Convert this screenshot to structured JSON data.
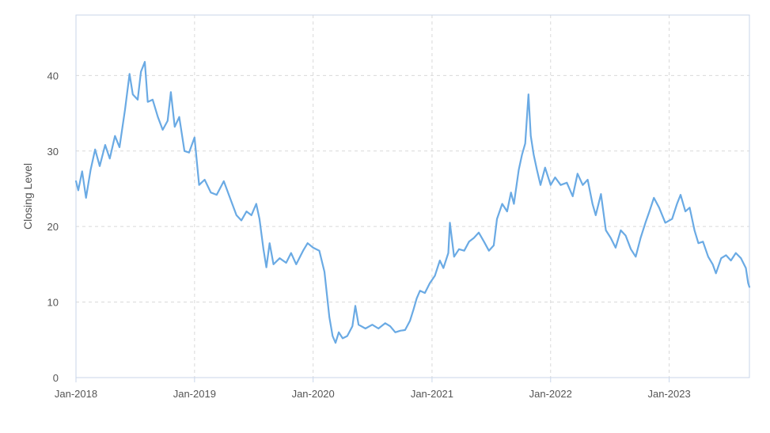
{
  "chart_data": {
    "type": "line",
    "title": "",
    "xlabel": "",
    "ylabel": "Closing Level",
    "ylim": [
      0,
      48
    ],
    "yticks": [
      0,
      10,
      20,
      30,
      40
    ],
    "xlim": [
      "2018-01-01",
      "2023-09-05"
    ],
    "xticks": [
      {
        "date": "2018-01-01",
        "label": "Jan-2018"
      },
      {
        "date": "2019-01-01",
        "label": "Jan-2019"
      },
      {
        "date": "2020-01-01",
        "label": "Jan-2020"
      },
      {
        "date": "2021-01-01",
        "label": "Jan-2021"
      },
      {
        "date": "2022-01-01",
        "label": "Jan-2022"
      },
      {
        "date": "2023-01-01",
        "label": "Jan-2023"
      }
    ],
    "grid": true,
    "legend": "none",
    "colors": {
      "line": "#6aaae4",
      "grid": "#d9d9d9",
      "frame": "#c9d6ea"
    },
    "series": [
      {
        "points": [
          [
            "2018-01-01",
            26.0
          ],
          [
            "2018-01-08",
            24.8
          ],
          [
            "2018-01-20",
            27.3
          ],
          [
            "2018-02-01",
            23.8
          ],
          [
            "2018-02-15",
            27.5
          ],
          [
            "2018-03-01",
            30.2
          ],
          [
            "2018-03-15",
            28.0
          ],
          [
            "2018-04-01",
            30.8
          ],
          [
            "2018-04-15",
            29.0
          ],
          [
            "2018-05-01",
            32.0
          ],
          [
            "2018-05-15",
            30.5
          ],
          [
            "2018-06-01",
            35.5
          ],
          [
            "2018-06-15",
            40.2
          ],
          [
            "2018-06-25",
            37.5
          ],
          [
            "2018-07-10",
            36.8
          ],
          [
            "2018-07-20",
            40.5
          ],
          [
            "2018-08-01",
            41.8
          ],
          [
            "2018-08-10",
            36.5
          ],
          [
            "2018-08-25",
            36.8
          ],
          [
            "2018-09-10",
            34.5
          ],
          [
            "2018-09-25",
            32.8
          ],
          [
            "2018-10-10",
            34.0
          ],
          [
            "2018-10-20",
            37.8
          ],
          [
            "2018-11-01",
            33.2
          ],
          [
            "2018-11-15",
            34.5
          ],
          [
            "2018-12-01",
            30.0
          ],
          [
            "2018-12-15",
            29.8
          ],
          [
            "2019-01-01",
            31.8
          ],
          [
            "2019-01-15",
            25.5
          ],
          [
            "2019-02-01",
            26.2
          ],
          [
            "2019-02-20",
            24.5
          ],
          [
            "2019-03-10",
            24.2
          ],
          [
            "2019-04-01",
            26.0
          ],
          [
            "2019-04-20",
            23.8
          ],
          [
            "2019-05-10",
            21.5
          ],
          [
            "2019-05-25",
            20.8
          ],
          [
            "2019-06-10",
            22.0
          ],
          [
            "2019-06-25",
            21.5
          ],
          [
            "2019-07-10",
            23.0
          ],
          [
            "2019-07-20",
            21.0
          ],
          [
            "2019-08-01",
            17.0
          ],
          [
            "2019-08-10",
            14.6
          ],
          [
            "2019-08-20",
            17.8
          ],
          [
            "2019-09-01",
            15.0
          ],
          [
            "2019-09-20",
            15.8
          ],
          [
            "2019-10-10",
            15.2
          ],
          [
            "2019-10-25",
            16.5
          ],
          [
            "2019-11-10",
            15.0
          ],
          [
            "2019-12-01",
            16.8
          ],
          [
            "2019-12-15",
            17.8
          ],
          [
            "2020-01-01",
            17.2
          ],
          [
            "2020-01-20",
            16.8
          ],
          [
            "2020-02-05",
            14.0
          ],
          [
            "2020-02-20",
            8.0
          ],
          [
            "2020-03-01",
            5.5
          ],
          [
            "2020-03-10",
            4.6
          ],
          [
            "2020-03-20",
            6.0
          ],
          [
            "2020-04-01",
            5.2
          ],
          [
            "2020-04-15",
            5.5
          ],
          [
            "2020-05-01",
            6.8
          ],
          [
            "2020-05-10",
            9.5
          ],
          [
            "2020-05-20",
            7.0
          ],
          [
            "2020-06-10",
            6.5
          ],
          [
            "2020-07-01",
            7.0
          ],
          [
            "2020-07-20",
            6.5
          ],
          [
            "2020-08-10",
            7.2
          ],
          [
            "2020-08-25",
            6.8
          ],
          [
            "2020-09-10",
            6.0
          ],
          [
            "2020-09-25",
            6.2
          ],
          [
            "2020-10-10",
            6.3
          ],
          [
            "2020-10-25",
            7.5
          ],
          [
            "2020-11-05",
            9.0
          ],
          [
            "2020-11-15",
            10.5
          ],
          [
            "2020-11-25",
            11.5
          ],
          [
            "2020-12-10",
            11.2
          ],
          [
            "2020-12-25",
            12.5
          ],
          [
            "2021-01-10",
            13.5
          ],
          [
            "2021-01-25",
            15.5
          ],
          [
            "2021-02-05",
            14.5
          ],
          [
            "2021-02-20",
            16.5
          ],
          [
            "2021-02-25",
            20.5
          ],
          [
            "2021-03-10",
            16.0
          ],
          [
            "2021-03-25",
            17.0
          ],
          [
            "2021-04-10",
            16.8
          ],
          [
            "2021-04-25",
            18.0
          ],
          [
            "2021-05-10",
            18.5
          ],
          [
            "2021-05-25",
            19.2
          ],
          [
            "2021-06-10",
            18.0
          ],
          [
            "2021-06-25",
            16.8
          ],
          [
            "2021-07-10",
            17.5
          ],
          [
            "2021-07-20",
            21.0
          ],
          [
            "2021-08-05",
            23.0
          ],
          [
            "2021-08-20",
            22.0
          ],
          [
            "2021-09-01",
            24.5
          ],
          [
            "2021-09-10",
            23.0
          ],
          [
            "2021-09-25",
            27.5
          ],
          [
            "2021-10-05",
            29.5
          ],
          [
            "2021-10-15",
            31.0
          ],
          [
            "2021-10-25",
            37.5
          ],
          [
            "2021-11-01",
            32.0
          ],
          [
            "2021-11-10",
            29.5
          ],
          [
            "2021-11-20",
            27.5
          ],
          [
            "2021-12-01",
            25.5
          ],
          [
            "2021-12-15",
            27.8
          ],
          [
            "2022-01-01",
            25.5
          ],
          [
            "2022-01-15",
            26.5
          ],
          [
            "2022-02-01",
            25.5
          ],
          [
            "2022-02-20",
            25.8
          ],
          [
            "2022-03-10",
            24.0
          ],
          [
            "2022-03-25",
            27.0
          ],
          [
            "2022-04-10",
            25.5
          ],
          [
            "2022-04-25",
            26.2
          ],
          [
            "2022-05-10",
            23.0
          ],
          [
            "2022-05-20",
            21.5
          ],
          [
            "2022-06-05",
            24.3
          ],
          [
            "2022-06-20",
            19.5
          ],
          [
            "2022-07-05",
            18.5
          ],
          [
            "2022-07-20",
            17.2
          ],
          [
            "2022-08-05",
            19.5
          ],
          [
            "2022-08-20",
            18.8
          ],
          [
            "2022-09-05",
            17.0
          ],
          [
            "2022-09-20",
            16.0
          ],
          [
            "2022-10-05",
            18.5
          ],
          [
            "2022-10-20",
            20.5
          ],
          [
            "2022-11-01",
            22.0
          ],
          [
            "2022-11-15",
            23.8
          ],
          [
            "2022-12-01",
            22.5
          ],
          [
            "2022-12-20",
            20.5
          ],
          [
            "2023-01-10",
            21.0
          ],
          [
            "2023-01-25",
            23.0
          ],
          [
            "2023-02-05",
            24.2
          ],
          [
            "2023-02-20",
            22.0
          ],
          [
            "2023-03-05",
            22.5
          ],
          [
            "2023-03-20",
            19.5
          ],
          [
            "2023-04-01",
            17.8
          ],
          [
            "2023-04-15",
            18.0
          ],
          [
            "2023-05-01",
            16.0
          ],
          [
            "2023-05-15",
            15.0
          ],
          [
            "2023-05-25",
            13.8
          ],
          [
            "2023-06-10",
            15.8
          ],
          [
            "2023-06-25",
            16.2
          ],
          [
            "2023-07-10",
            15.5
          ],
          [
            "2023-07-25",
            16.5
          ],
          [
            "2023-08-10",
            15.8
          ],
          [
            "2023-08-25",
            14.5
          ],
          [
            "2023-09-01",
            12.5
          ],
          [
            "2023-09-05",
            12.0
          ]
        ]
      }
    ]
  }
}
